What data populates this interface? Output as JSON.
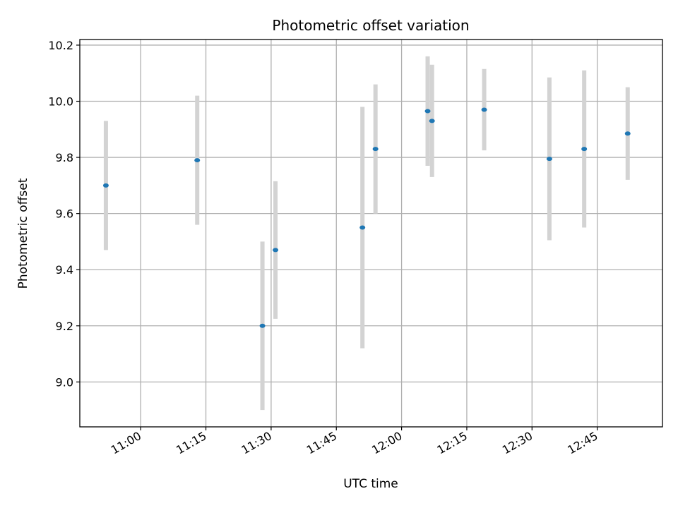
{
  "chart_data": {
    "type": "scatter",
    "title": "Photometric offset variation",
    "xlabel": "UTC time",
    "ylabel": "Photometric offset",
    "x_ticks": [
      "11:00",
      "11:15",
      "11:30",
      "11:45",
      "12:00",
      "12:15",
      "12:30",
      "12:45"
    ],
    "y_ticks": [
      "9.0",
      "9.2",
      "9.4",
      "9.6",
      "9.8",
      "10.0",
      "10.2"
    ],
    "xlim": [
      "10:46",
      "13:00"
    ],
    "ylim": [
      8.84,
      10.22
    ],
    "grid": true,
    "colors": {
      "point": "#1f77b4",
      "errorbar": "#d3d3d3",
      "grid": "#b0b0b0"
    },
    "points": [
      {
        "x": "10:52",
        "y": 9.7,
        "err": 0.23
      },
      {
        "x": "11:13",
        "y": 9.79,
        "err": 0.23
      },
      {
        "x": "11:28",
        "y": 9.2,
        "err": 0.3
      },
      {
        "x": "11:31",
        "y": 9.47,
        "err": 0.245
      },
      {
        "x": "11:51",
        "y": 9.55,
        "err": 0.43
      },
      {
        "x": "11:54",
        "y": 9.83,
        "err": 0.23
      },
      {
        "x": "12:06",
        "y": 9.965,
        "err": 0.195
      },
      {
        "x": "12:07",
        "y": 9.93,
        "err": 0.2
      },
      {
        "x": "12:19",
        "y": 9.97,
        "err": 0.145
      },
      {
        "x": "12:34",
        "y": 9.795,
        "err": 0.29
      },
      {
        "x": "12:42",
        "y": 9.83,
        "err": 0.28
      },
      {
        "x": "12:52",
        "y": 9.885,
        "err": 0.165
      }
    ]
  }
}
